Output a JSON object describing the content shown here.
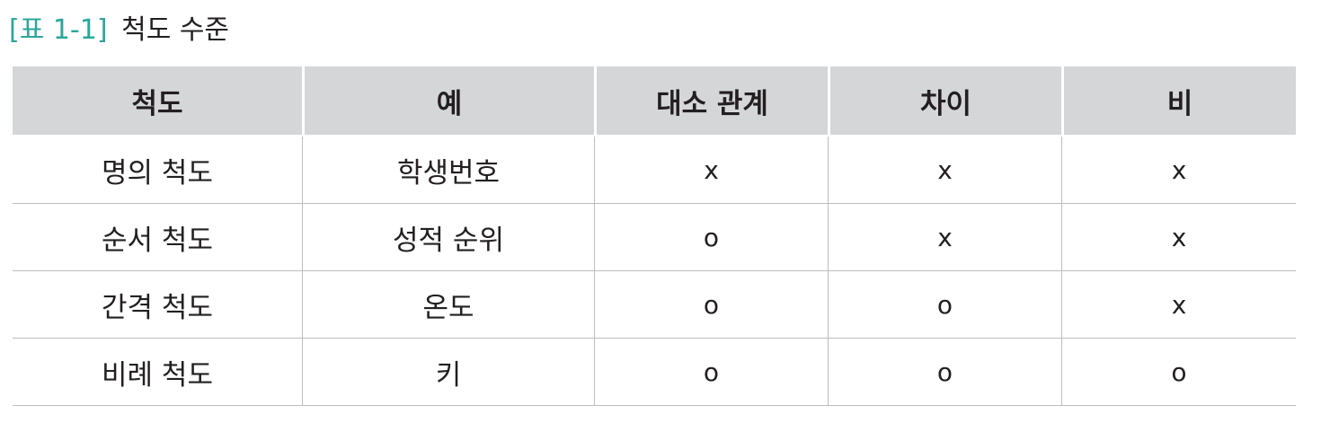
{
  "caption": {
    "label": "[표 1-1]",
    "title": "척도 수준"
  },
  "table": {
    "headers": [
      "척도",
      "예",
      "대소 관계",
      "차이",
      "비"
    ],
    "rows": [
      [
        "명의 척도",
        "학생번호",
        "x",
        "x",
        "x"
      ],
      [
        "순서 척도",
        "성적 순위",
        "o",
        "x",
        "x"
      ],
      [
        "간격 척도",
        "온도",
        "o",
        "o",
        "x"
      ],
      [
        "비례 척도",
        "키",
        "o",
        "o",
        "o"
      ]
    ]
  },
  "colors": {
    "caption_label": "#2aa79a",
    "header_background": "#d5d6d8",
    "text": "#231f20",
    "rule": "#bdbdbd"
  }
}
